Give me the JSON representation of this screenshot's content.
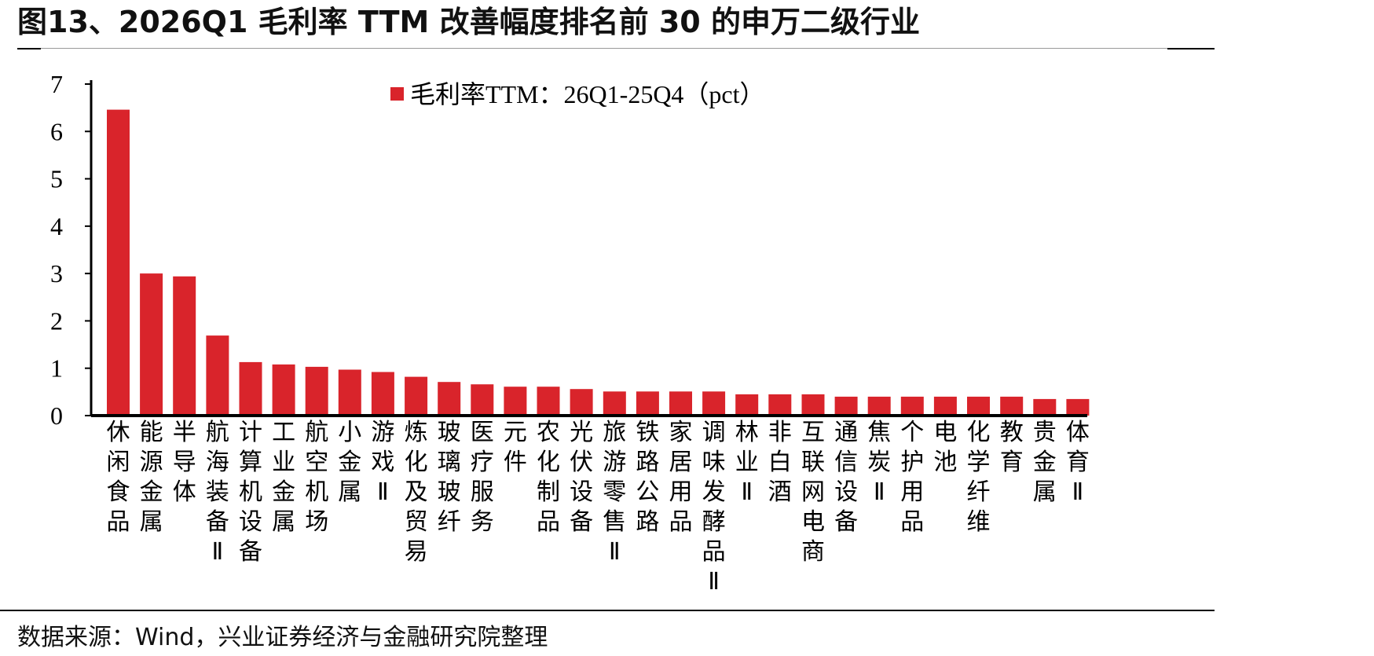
{
  "header": {
    "title": "图13、2026Q1 毛利率 TTM 改善幅度排名前 30 的申万二级行业"
  },
  "footer": {
    "source": "数据来源：Wind，兴业证券经济与金融研究院整理"
  },
  "colors": {
    "bar": "#d9242b",
    "axis": "#000000"
  },
  "chart_data": {
    "type": "bar",
    "title": "",
    "xlabel": "",
    "ylabel": "",
    "ylim": [
      0,
      7
    ],
    "yticks": [
      "0",
      "1",
      "2",
      "3",
      "4",
      "5",
      "6",
      "7"
    ],
    "grid": false,
    "legend_position": "top-center",
    "categories": [
      "休闲食品",
      "能源金属",
      "半导体",
      "航海装备Ⅱ",
      "计算机设备",
      "工业金属",
      "航空机场",
      "小金属",
      "游戏Ⅱ",
      "炼化及贸易",
      "玻璃玻纤",
      "医疗服务",
      "元件",
      "农化制品",
      "光伏设备",
      "旅游零售Ⅱ",
      "铁路公路",
      "家居用品",
      "调味发酵品Ⅱ",
      "林业Ⅱ",
      "非白酒",
      "互联网电商",
      "通信设备",
      "焦炭Ⅱ",
      "个护用品",
      "电池",
      "化学纤维",
      "教育",
      "贵金属",
      "体育Ⅱ"
    ],
    "series": [
      {
        "name": "毛利率TTM：26Q1-25Q4（pct）",
        "values": [
          6.46,
          3.0,
          2.94,
          1.69,
          1.13,
          1.08,
          1.03,
          0.97,
          0.92,
          0.82,
          0.71,
          0.66,
          0.61,
          0.61,
          0.56,
          0.51,
          0.51,
          0.51,
          0.51,
          0.45,
          0.45,
          0.45,
          0.4,
          0.4,
          0.4,
          0.4,
          0.4,
          0.4,
          0.35,
          0.35
        ]
      }
    ]
  }
}
